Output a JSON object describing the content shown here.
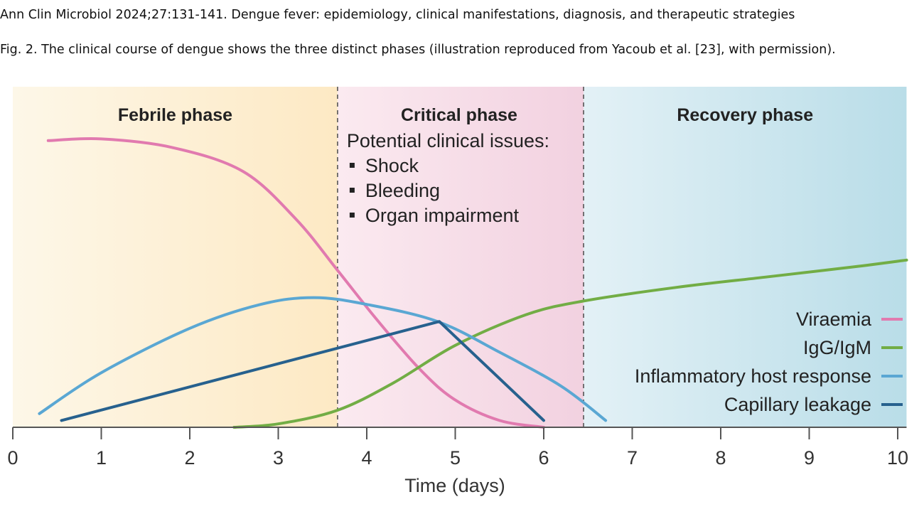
{
  "header": {
    "journal_line": "Ann Clin Microbiol 2024;27:131-141. Dengue fever: epidemiology, clinical manifestations, diagnosis, and therapeutic strategies",
    "figure_caption": "Fig. 2. The clinical course of dengue shows the three distinct phases (illustration reproduced from Yacoub et al. [23], with permission)."
  },
  "chart_data": {
    "type": "line",
    "xlabel": "Time (days)",
    "ylabel": "",
    "xlim": [
      0,
      10.1
    ],
    "ylim": [
      0,
      1
    ],
    "x_ticks": [
      0,
      1,
      2,
      3,
      4,
      5,
      6,
      7,
      8,
      9,
      10
    ],
    "grid": false,
    "legend_placement": "right",
    "phases": [
      {
        "name": "Febrile phase",
        "start": 0,
        "end": 3.67,
        "color_from": "#fdf7e8",
        "color_to": "#fde9c4"
      },
      {
        "name": "Critical phase",
        "start": 3.67,
        "end": 6.45,
        "color_from": "#fbeaf0",
        "color_to": "#f2d1e0"
      },
      {
        "name": "Recovery phase",
        "start": 6.45,
        "end": 10.1,
        "color_from": "#e3f1f6",
        "color_to": "#b9dde8"
      }
    ],
    "annotation": {
      "heading": "Potential clinical issues:",
      "items": [
        "Shock",
        "Bleeding",
        "Organ impairment"
      ]
    },
    "series": [
      {
        "name": "Viraemia",
        "color": "#e17aaf",
        "points": [
          [
            0.4,
            0.84
          ],
          [
            1.0,
            0.845
          ],
          [
            1.8,
            0.82
          ],
          [
            2.6,
            0.75
          ],
          [
            3.2,
            0.61
          ],
          [
            3.67,
            0.46
          ],
          [
            4.1,
            0.32
          ],
          [
            4.6,
            0.17
          ],
          [
            5.0,
            0.08
          ],
          [
            5.5,
            0.02
          ],
          [
            6.0,
            0.0
          ]
        ]
      },
      {
        "name": "IgG/IgM",
        "color": "#72ad45",
        "points": [
          [
            2.5,
            0.0
          ],
          [
            3.0,
            0.01
          ],
          [
            3.67,
            0.05
          ],
          [
            4.3,
            0.13
          ],
          [
            5.0,
            0.24
          ],
          [
            5.8,
            0.33
          ],
          [
            6.45,
            0.37
          ],
          [
            7.5,
            0.41
          ],
          [
            8.5,
            0.44
          ],
          [
            9.5,
            0.47
          ],
          [
            10.1,
            0.49
          ]
        ]
      },
      {
        "name": "Inflammatory host response",
        "color": "#5aa7d3",
        "points": [
          [
            0.3,
            0.04
          ],
          [
            1.0,
            0.16
          ],
          [
            2.0,
            0.29
          ],
          [
            2.8,
            0.36
          ],
          [
            3.4,
            0.38
          ],
          [
            4.0,
            0.36
          ],
          [
            4.8,
            0.31
          ],
          [
            5.5,
            0.22
          ],
          [
            6.2,
            0.12
          ],
          [
            6.7,
            0.02
          ]
        ]
      },
      {
        "name": "Capillary leakage",
        "color": "#27618e",
        "points": [
          [
            0.55,
            0.02
          ],
          [
            4.82,
            0.31
          ],
          [
            6.0,
            0.02
          ]
        ]
      }
    ]
  }
}
